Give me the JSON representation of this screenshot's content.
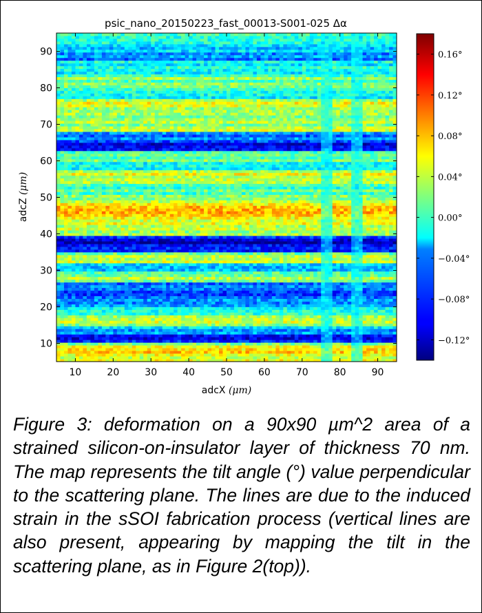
{
  "figure": {
    "caption": "Figure 3: deformation on a 90x90 µm^2 area of a strained silicon-on-insulator layer of thickness 70 nm. The map represents the tilt angle (°) value perpendicular to the scattering plane. The lines are due to the induced strain in the sSOI fabrication process (vertical lines are also present, appearing by mapping the tilt in the scattering plane, as in Figure 2(top))."
  },
  "chart_data": {
    "type": "heatmap",
    "title": "psic_nano_20150223_fast_00013-S001-025 Δα",
    "xlabel": "adcX",
    "xlabel_unit": "(μm)",
    "ylabel": "adcZ",
    "ylabel_unit": "(μm)",
    "xlim": [
      5,
      95
    ],
    "ylim": [
      5,
      95
    ],
    "x_ticks": [
      10,
      20,
      30,
      40,
      50,
      60,
      70,
      80,
      90
    ],
    "y_ticks": [
      10,
      20,
      30,
      40,
      50,
      60,
      70,
      80,
      90
    ],
    "colorbar": {
      "range": [
        -0.14,
        0.18
      ],
      "ticks": [
        0.16,
        0.12,
        0.08,
        0.04,
        0.0,
        -0.04,
        -0.08,
        -0.12
      ],
      "tick_labels": [
        "0.16°",
        "0.12°",
        "0.08°",
        "0.04°",
        "0.00°",
        "−0.04°",
        "−0.08°",
        "−0.12°"
      ],
      "colormap": "jet"
    },
    "horizontal_bands": [
      {
        "z": 6.5,
        "value": 0.05
      },
      {
        "z": 8.5,
        "value": 0.06
      },
      {
        "z": 11.5,
        "value": -0.12
      },
      {
        "z": 13.5,
        "value": -0.05
      },
      {
        "z": 16.5,
        "value": 0.05
      },
      {
        "z": 19.5,
        "value": -0.03
      },
      {
        "z": 21.5,
        "value": -0.06
      },
      {
        "z": 25,
        "value": -0.08
      },
      {
        "z": 28,
        "value": 0.03
      },
      {
        "z": 31,
        "value": -0.04
      },
      {
        "z": 33.5,
        "value": 0.04
      },
      {
        "z": 36.5,
        "value": -0.11
      },
      {
        "z": 38,
        "value": -0.12
      },
      {
        "z": 40.5,
        "value": 0.04
      },
      {
        "z": 43.5,
        "value": 0.05
      },
      {
        "z": 46,
        "value": 0.09
      },
      {
        "z": 49,
        "value": 0.04
      },
      {
        "z": 52,
        "value": 0.01
      },
      {
        "z": 56,
        "value": 0.05
      },
      {
        "z": 58.5,
        "value": -0.03
      },
      {
        "z": 61,
        "value": 0.02
      },
      {
        "z": 64,
        "value": -0.11
      },
      {
        "z": 66,
        "value": -0.07
      },
      {
        "z": 69.5,
        "value": 0.04
      },
      {
        "z": 72.5,
        "value": 0.02
      },
      {
        "z": 75.5,
        "value": 0.04
      },
      {
        "z": 78.5,
        "value": -0.02
      },
      {
        "z": 82,
        "value": 0.02
      },
      {
        "z": 86,
        "value": -0.02
      },
      {
        "z": 88.5,
        "value": -0.06
      },
      {
        "z": 91.5,
        "value": -0.02
      }
    ],
    "vertical_features": [
      {
        "x": 76.5,
        "value": -0.02
      },
      {
        "x": 84.5,
        "value": -0.02
      }
    ],
    "grid": false
  }
}
